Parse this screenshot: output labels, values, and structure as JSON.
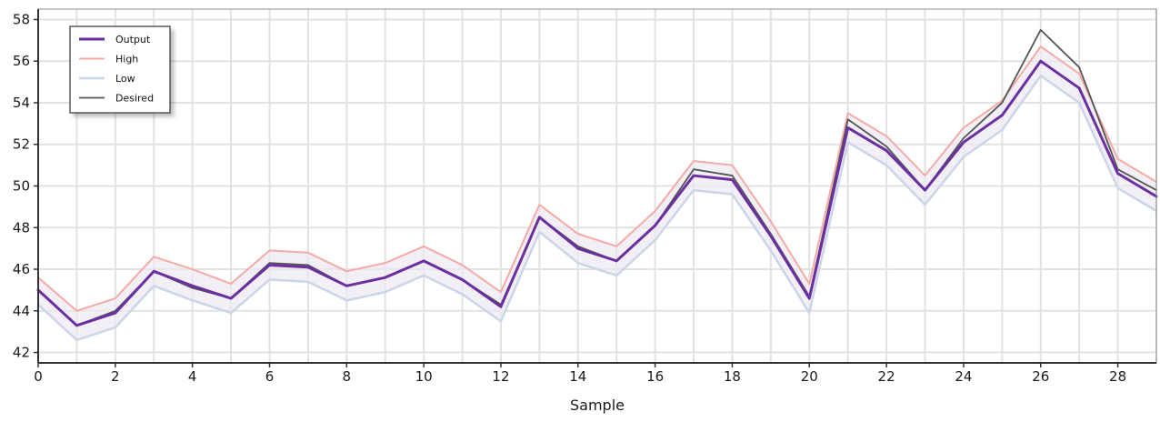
{
  "chart_data": {
    "type": "line",
    "title": "",
    "xlabel": "Sample",
    "ylabel": "",
    "xlim": [
      0,
      29
    ],
    "ylim": [
      41.5,
      58.5
    ],
    "x_ticks": [
      0,
      2,
      4,
      6,
      8,
      10,
      12,
      14,
      16,
      18,
      20,
      22,
      24,
      26,
      28
    ],
    "y_ticks": [
      42,
      44,
      46,
      48,
      50,
      52,
      54,
      56,
      58
    ],
    "grid": true,
    "legend_position": "top-left",
    "x": [
      0,
      1,
      2,
      3,
      4,
      5,
      6,
      7,
      8,
      9,
      10,
      11,
      12,
      13,
      14,
      15,
      16,
      17,
      18,
      19,
      20,
      21,
      22,
      23,
      24,
      25,
      26,
      27,
      28,
      29
    ],
    "series": [
      {
        "name": "Output",
        "color": "#6a2fa0",
        "values": [
          45.0,
          43.3,
          43.9,
          45.9,
          45.2,
          44.6,
          46.2,
          46.1,
          45.2,
          45.6,
          46.4,
          45.5,
          44.2,
          48.5,
          47.0,
          46.4,
          48.1,
          50.5,
          50.3,
          47.6,
          44.6,
          52.8,
          51.7,
          49.8,
          52.1,
          53.4,
          56.0,
          54.7,
          50.6,
          49.5
        ]
      },
      {
        "name": "High",
        "color": "#f4aaa5",
        "values": [
          45.6,
          44.0,
          44.6,
          46.6,
          46.0,
          45.3,
          46.9,
          46.8,
          45.9,
          46.3,
          47.1,
          46.2,
          44.9,
          49.1,
          47.7,
          47.1,
          48.8,
          51.2,
          51.0,
          48.3,
          45.3,
          53.5,
          52.4,
          50.5,
          52.8,
          54.1,
          56.7,
          55.4,
          51.3,
          50.2
        ]
      },
      {
        "name": "Low",
        "color": "#ccd5e8",
        "values": [
          44.3,
          42.6,
          43.2,
          45.2,
          44.5,
          43.9,
          45.5,
          45.4,
          44.5,
          44.9,
          45.7,
          44.8,
          43.5,
          47.8,
          46.3,
          45.7,
          47.4,
          49.8,
          49.6,
          46.9,
          43.9,
          52.1,
          51.0,
          49.1,
          51.4,
          52.7,
          55.3,
          54.0,
          49.9,
          48.8
        ]
      },
      {
        "name": "Desired",
        "color": "#555555",
        "values": [
          45.0,
          43.3,
          44.0,
          45.9,
          45.1,
          44.6,
          46.3,
          46.2,
          45.2,
          45.6,
          46.4,
          45.5,
          44.3,
          48.5,
          47.1,
          46.4,
          48.1,
          50.8,
          50.5,
          47.7,
          44.7,
          53.2,
          51.9,
          49.8,
          52.3,
          54.0,
          57.5,
          55.7,
          50.8,
          49.8
        ]
      }
    ]
  }
}
